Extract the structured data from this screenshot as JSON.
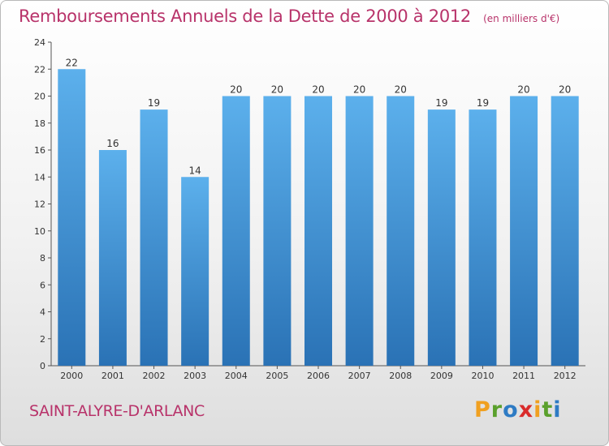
{
  "header": {
    "title": "Remboursements Annuels de la Dette de 2000 à 2012",
    "unit": "(en milliers d'€)"
  },
  "footer": {
    "commune": "SAINT-ALYRE-D'ARLANC",
    "brand_letters": [
      "P",
      "r",
      "o",
      "x",
      "i",
      "t",
      "i"
    ],
    "brand_colors": [
      "#f0a020",
      "#5aa02c",
      "#2e7bc4",
      "#d92b2b",
      "#f0a020",
      "#5aa02c",
      "#2e7bc4"
    ]
  },
  "colors": {
    "bar_top": "#5cb0ec",
    "bar_bottom": "#2a72b5",
    "title": "#b8336a"
  },
  "chart_data": {
    "type": "bar",
    "title": "Remboursements Annuels de la Dette de 2000 à 2012",
    "categories": [
      "2000",
      "2001",
      "2002",
      "2003",
      "2004",
      "2005",
      "2006",
      "2007",
      "2008",
      "2009",
      "2010",
      "2011",
      "2012"
    ],
    "values": [
      22,
      16,
      19,
      14,
      20,
      20,
      20,
      20,
      20,
      19,
      19,
      20,
      20
    ],
    "ylim": [
      0,
      24
    ],
    "yticks": [
      0,
      2,
      4,
      6,
      8,
      10,
      12,
      14,
      16,
      18,
      20,
      22,
      24
    ],
    "grid": false,
    "data_labels": true
  }
}
